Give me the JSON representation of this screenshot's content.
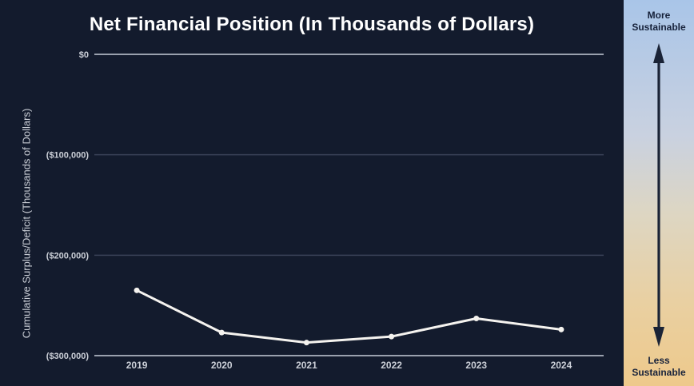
{
  "chart_data": {
    "type": "line",
    "title": "Net Financial Position (In Thousands of Dollars)",
    "ylabel": "Cumulative Surplus/Deficit (Thousands of Dollars)",
    "xlabel": "",
    "categories": [
      "2019",
      "2020",
      "2021",
      "2022",
      "2023",
      "2024"
    ],
    "series": [
      {
        "name": "Net Financial Position",
        "values": [
          -235000,
          -277000,
          -287000,
          -281000,
          -263000,
          -274000
        ]
      }
    ],
    "ylim": [
      -300000,
      0
    ],
    "yticks": [
      {
        "value": 0,
        "label": "$0"
      },
      {
        "value": -100000,
        "label": "($100,000)"
      },
      {
        "value": -200000,
        "label": "($200,000)"
      },
      {
        "value": -300000,
        "label": "($300,000)"
      }
    ],
    "grid": true,
    "legend_position": "none",
    "marker": "circle"
  },
  "colors": {
    "background": "#131b2d",
    "series_line": "#f5f3ef",
    "grid_strong": "#9aa1ae",
    "grid_dim": "#3a4258",
    "tick_text": "#ccd0d8",
    "title_text": "#ffffff",
    "sidebar_gradient_top": "#a9c5e8",
    "sidebar_gradient_bottom": "#eec98b",
    "sidebar_text": "#16213a",
    "arrow": "#1a2336"
  },
  "sidebar": {
    "top_label": "More\nSustainable",
    "bottom_label": "Less\nSustainable",
    "arrow_icon": "double-headed-vertical-arrow"
  }
}
